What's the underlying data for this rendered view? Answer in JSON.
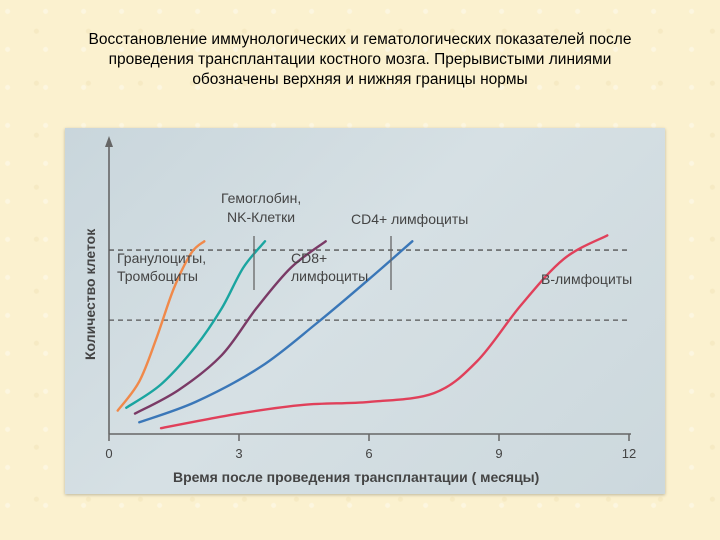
{
  "page": {
    "title_lines": [
      "Восстановление иммунологических и гематологических показателей после",
      "проведения трансплантации костного мозга. Прерывистыми линиями",
      "обозначены верхняя и нижняя границы нормы"
    ]
  },
  "chart_data": {
    "type": "line",
    "xlabel": "Время после проведения трансплантации ( месяцы)",
    "ylabel": "Количество клеток",
    "xlim": [
      0,
      12
    ],
    "ylim": [
      0,
      100
    ],
    "x_ticks": [
      "0",
      "3",
      "6",
      "9",
      "12"
    ],
    "reference_lines": [
      {
        "y": 63,
        "style": "dashed"
      },
      {
        "y": 39,
        "style": "dashed"
      }
    ],
    "series": [
      {
        "color": "#f0894a",
        "x": [
          0.2,
          0.7,
          1.1,
          1.5,
          1.9,
          2.2
        ],
        "y": [
          8,
          18,
          33,
          50,
          62,
          66
        ]
      },
      {
        "color": "#1aa5a0",
        "x": [
          0.4,
          1.2,
          2.0,
          2.6,
          3.1,
          3.6
        ],
        "y": [
          9,
          17,
          30,
          43,
          57,
          66
        ]
      },
      {
        "color": "#7a3a66",
        "x": [
          0.6,
          1.6,
          2.6,
          3.4,
          4.2,
          5.0
        ],
        "y": [
          7,
          15,
          27,
          43,
          57,
          66
        ]
      },
      {
        "color": "#3a77b8",
        "x": [
          0.7,
          2.0,
          3.5,
          4.8,
          6.0,
          7.0
        ],
        "y": [
          4,
          11,
          23,
          38,
          53,
          66
        ]
      },
      {
        "color": "#e0405a",
        "x": [
          1.2,
          3.0,
          4.5,
          6.0,
          7.5,
          8.5,
          9.5,
          10.5,
          11.5
        ],
        "y": [
          2,
          7,
          10,
          11,
          14,
          25,
          44,
          60,
          68
        ]
      }
    ],
    "annotations": [
      {
        "id": "gran",
        "lines": [
          "Гранулоциты,",
          "Тромбоциты"
        ]
      },
      {
        "id": "hgb",
        "lines": [
          "Гемоглобин,",
          "NK-Клетки"
        ]
      },
      {
        "id": "cd8",
        "lines": [
          "CD8+",
          "лимфоциты"
        ]
      },
      {
        "id": "cd4",
        "lines": [
          "CD4+ лимфоциты"
        ]
      },
      {
        "id": "b",
        "lines": [
          "В-лимфоциты"
        ]
      }
    ]
  }
}
